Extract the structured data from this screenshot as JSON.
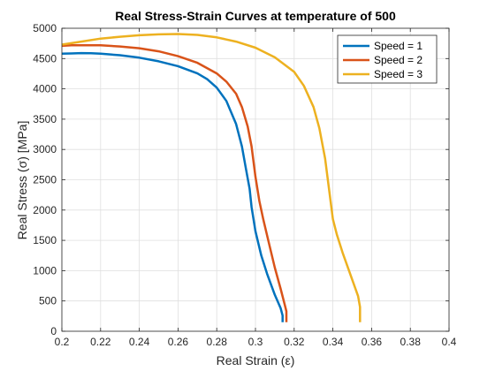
{
  "chart_data": {
    "type": "line",
    "title": "Real Stress-Strain Curves at temperature of 500",
    "xlabel": "Real Strain (ε)",
    "ylabel": "Real Stress (σ) [MPa]",
    "xlim": [
      0.2,
      0.4
    ],
    "ylim": [
      0,
      5000
    ],
    "xticks": [
      0.2,
      0.22,
      0.24,
      0.26,
      0.28,
      0.3,
      0.32,
      0.34,
      0.36,
      0.38,
      0.4
    ],
    "xtick_labels": [
      "0.2",
      "0.22",
      "0.24",
      "0.26",
      "0.28",
      "0.3",
      "0.32",
      "0.34",
      "0.36",
      "0.38",
      "0.4"
    ],
    "yticks": [
      0,
      500,
      1000,
      1500,
      2000,
      2500,
      3000,
      3500,
      4000,
      4500,
      5000
    ],
    "ytick_labels": [
      "0",
      "500",
      "1000",
      "1500",
      "2000",
      "2500",
      "3000",
      "3500",
      "4000",
      "4500",
      "5000"
    ],
    "grid": true,
    "legend_position": "top-right",
    "series": [
      {
        "name": "Speed = 1",
        "color": "#0072BD",
        "x": [
          0.2,
          0.205,
          0.21,
          0.215,
          0.22,
          0.23,
          0.24,
          0.25,
          0.26,
          0.27,
          0.275,
          0.28,
          0.285,
          0.29,
          0.293,
          0.295,
          0.297,
          0.298,
          0.3,
          0.303,
          0.306,
          0.31,
          0.313,
          0.314,
          0.314
        ],
        "y": [
          4580,
          4585,
          4590,
          4588,
          4580,
          4555,
          4515,
          4455,
          4375,
          4255,
          4160,
          4020,
          3800,
          3420,
          3050,
          2700,
          2350,
          2050,
          1650,
          1250,
          950,
          600,
          380,
          260,
          150
        ]
      },
      {
        "name": "Speed = 2",
        "color": "#D95319",
        "x": [
          0.2,
          0.205,
          0.21,
          0.215,
          0.22,
          0.23,
          0.24,
          0.25,
          0.26,
          0.27,
          0.28,
          0.285,
          0.29,
          0.293,
          0.296,
          0.298,
          0.3,
          0.302,
          0.304,
          0.307,
          0.31,
          0.313,
          0.315,
          0.316,
          0.316
        ],
        "y": [
          4710,
          4718,
          4720,
          4720,
          4718,
          4700,
          4670,
          4620,
          4540,
          4430,
          4255,
          4120,
          3920,
          3700,
          3380,
          3050,
          2550,
          2150,
          1850,
          1450,
          1050,
          700,
          450,
          330,
          150
        ]
      },
      {
        "name": "Speed = 3",
        "color": "#EDB120",
        "x": [
          0.2,
          0.21,
          0.22,
          0.23,
          0.24,
          0.25,
          0.26,
          0.27,
          0.28,
          0.29,
          0.3,
          0.31,
          0.32,
          0.325,
          0.33,
          0.333,
          0.336,
          0.338,
          0.34,
          0.342,
          0.345,
          0.35,
          0.353,
          0.354,
          0.354
        ],
        "y": [
          4730,
          4780,
          4830,
          4860,
          4885,
          4900,
          4905,
          4890,
          4850,
          4780,
          4680,
          4520,
          4280,
          4050,
          3700,
          3350,
          2850,
          2350,
          1850,
          1600,
          1300,
          850,
          580,
          400,
          150
        ]
      }
    ]
  }
}
